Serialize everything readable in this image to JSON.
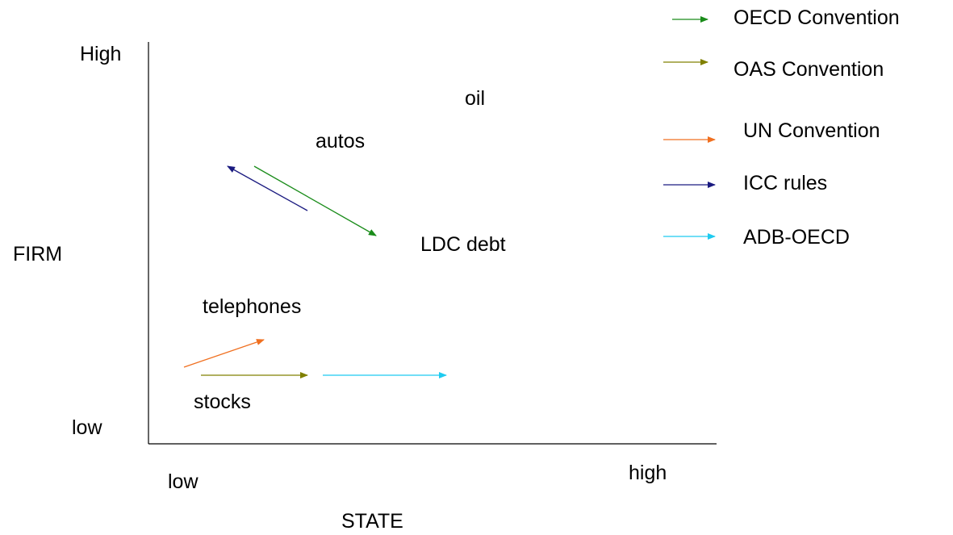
{
  "axes": {
    "y_title": "FIRM",
    "y_high": "High",
    "y_low": "low",
    "x_title": "STATE",
    "x_low": "low",
    "x_high": "high"
  },
  "items": {
    "oil": "oil",
    "autos": "autos",
    "ldc_debt": "LDC debt",
    "telephones": "telephones",
    "stocks": "stocks"
  },
  "legend": [
    {
      "label": "OECD Convention",
      "color": "#1a8c1a"
    },
    {
      "label": "OAS Convention",
      "color": "#808000"
    },
    {
      "label": "UN Convention",
      "color": "#f07020"
    },
    {
      "label": "ICC rules",
      "color": "#1a1a80"
    },
    {
      "label": "ADB-OECD",
      "color": "#1ecbf0"
    }
  ]
}
